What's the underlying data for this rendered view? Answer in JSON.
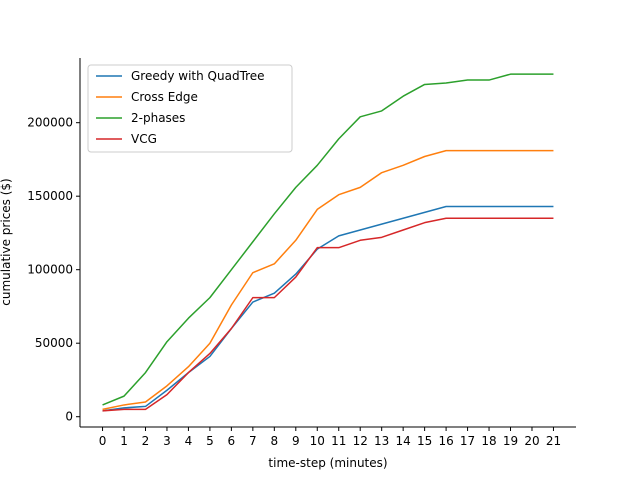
{
  "chart_data": {
    "type": "line",
    "title": "",
    "xlabel": "time-step (minutes)",
    "ylabel": "cumulative prices ($)",
    "x": [
      0,
      1,
      2,
      3,
      4,
      5,
      6,
      7,
      8,
      9,
      10,
      11,
      12,
      13,
      14,
      15,
      16,
      17,
      18,
      19,
      20,
      21
    ],
    "x_ticks": [
      "0",
      "1",
      "2",
      "3",
      "4",
      "5",
      "6",
      "7",
      "8",
      "9",
      "10",
      "11",
      "12",
      "13",
      "14",
      "15",
      "16",
      "17",
      "18",
      "19",
      "20",
      "21"
    ],
    "y_ticks": [
      0,
      50000,
      100000,
      150000,
      200000
    ],
    "y_tick_labels": [
      "0",
      "50000",
      "100000",
      "150000",
      "200000"
    ],
    "xlim": [
      -1.05,
      22.05
    ],
    "ylim": [
      -7000,
      244000
    ],
    "grid": false,
    "legend_position": "upper left",
    "series": [
      {
        "name": "Greedy with QuadTree",
        "color": "#1f77b4",
        "values": [
          4000,
          6000,
          7000,
          18000,
          30000,
          41000,
          60000,
          78000,
          84000,
          97000,
          114000,
          123000,
          127000,
          131000,
          135000,
          139000,
          143000,
          143000,
          143000,
          143000,
          143000,
          143000
        ]
      },
      {
        "name": "Cross Edge",
        "color": "#ff7f0e",
        "values": [
          5000,
          8000,
          10000,
          21000,
          34000,
          50000,
          76000,
          98000,
          104000,
          120000,
          141000,
          151000,
          156000,
          166000,
          171000,
          177000,
          181000,
          181000,
          181000,
          181000,
          181000,
          181000
        ]
      },
      {
        "name": "2-phases",
        "color": "#2ca02c",
        "values": [
          8000,
          14000,
          30000,
          51000,
          67000,
          81000,
          100000,
          119000,
          138000,
          156000,
          171000,
          189000,
          204000,
          208000,
          218000,
          226000,
          227000,
          229000,
          229000,
          233000,
          233000,
          233000
        ]
      },
      {
        "name": "VCG",
        "color": "#d62728",
        "values": [
          4000,
          5000,
          5000,
          15000,
          30000,
          43000,
          60000,
          81000,
          81000,
          95000,
          115000,
          115000,
          120000,
          122000,
          127000,
          132000,
          135000,
          135000,
          135000,
          135000,
          135000,
          135000
        ]
      }
    ]
  }
}
